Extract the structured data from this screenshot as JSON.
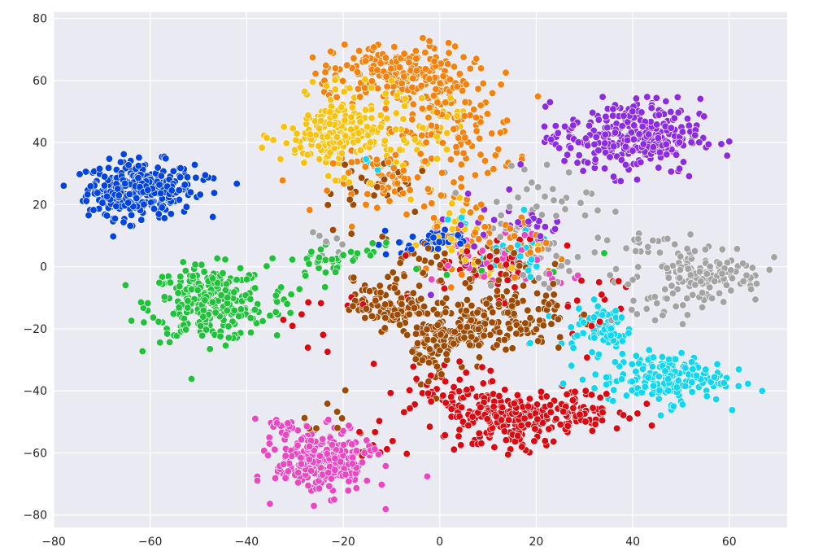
{
  "chart_data": {
    "type": "scatter",
    "title": "",
    "xlabel": "",
    "ylabel": "",
    "xlim": [
      -80,
      72
    ],
    "ylim": [
      -84,
      82
    ],
    "xticks": [
      -80,
      -60,
      -40,
      -20,
      0,
      20,
      40,
      60
    ],
    "yticks": [
      -80,
      -60,
      -40,
      -20,
      0,
      20,
      40,
      60,
      80
    ],
    "xtick_labels": [
      "−80",
      "−60",
      "−40",
      "−20",
      "0",
      "20",
      "40",
      "60"
    ],
    "ytick_labels": [
      "−80",
      "−60",
      "−40",
      "−20",
      "0",
      "20",
      "40",
      "60",
      "80"
    ],
    "grid": true,
    "legend": "none",
    "colors": {
      "background": "#eaeaf2",
      "grid": "#ffffff",
      "blue": "#0343df",
      "orange": "#f5820f",
      "green": "#22c13c",
      "red": "#db0a12",
      "purple": "#8b2be2",
      "brown": "#9c4a04",
      "pink": "#ea48c2",
      "gray": "#a3a3a3",
      "yellow": "#f9c210",
      "cyan": "#11d6f2"
    },
    "clusters": [
      {
        "color": "blue",
        "points": [
          {
            "cx": -62,
            "cy": 25,
            "sx": 5.5,
            "sy": 4.5,
            "n": 300
          },
          {
            "cx": -70,
            "cy": 22,
            "sx": 2,
            "sy": 3,
            "n": 20
          },
          {
            "cx": 0,
            "cy": 8,
            "sx": 4,
            "sy": 2,
            "n": 40
          },
          {
            "cx": -48,
            "cy": 29,
            "sx": 1,
            "sy": 1,
            "n": 4
          },
          {
            "cx": -42,
            "cy": 27,
            "sx": 0.5,
            "sy": 0.5,
            "n": 1
          },
          {
            "cx": -10,
            "cy": 5,
            "sx": 3,
            "sy": 2,
            "n": 5
          }
        ]
      },
      {
        "color": "green",
        "points": [
          {
            "cx": -48,
            "cy": -12,
            "sx": 6,
            "sy": 6,
            "n": 280
          },
          {
            "cx": -23,
            "cy": 2,
            "sx": 4,
            "sy": 3,
            "n": 35
          },
          {
            "cx": -34,
            "cy": -12,
            "sx": 2,
            "sy": 3,
            "n": 10
          },
          {
            "cx": -13,
            "cy": 6,
            "sx": 2,
            "sy": 2,
            "n": 6
          },
          {
            "cx": 15,
            "cy": 4,
            "sx": 8,
            "sy": 4,
            "n": 10
          }
        ]
      },
      {
        "color": "orange",
        "points": [
          {
            "cx": -8,
            "cy": 62,
            "sx": 7,
            "sy": 5,
            "n": 200
          },
          {
            "cx": 2,
            "cy": 44,
            "sx": 7,
            "sy": 9,
            "n": 120
          },
          {
            "cx": -10,
            "cy": 27,
            "sx": 6,
            "sy": 5,
            "n": 60
          },
          {
            "cx": 10,
            "cy": 8,
            "sx": 6,
            "sy": 5,
            "n": 50
          },
          {
            "cx": 20,
            "cy": 3,
            "sx": 4,
            "sy": 3,
            "n": 10
          },
          {
            "cx": -22,
            "cy": 58,
            "sx": 3,
            "sy": 5,
            "n": 10
          }
        ]
      },
      {
        "color": "yellow",
        "points": [
          {
            "cx": -21,
            "cy": 42,
            "sx": 6,
            "sy": 6,
            "n": 200
          },
          {
            "cx": -4,
            "cy": 45,
            "sx": 4,
            "sy": 6,
            "n": 40
          },
          {
            "cx": 3,
            "cy": 14,
            "sx": 3,
            "sy": 6,
            "n": 25
          },
          {
            "cx": -21,
            "cy": 56,
            "sx": 3,
            "sy": 3,
            "n": 15
          },
          {
            "cx": 12,
            "cy": 2,
            "sx": 4,
            "sy": 4,
            "n": 10
          }
        ]
      },
      {
        "color": "purple",
        "points": [
          {
            "cx": 40,
            "cy": 42,
            "sx": 7,
            "sy": 6,
            "n": 300
          },
          {
            "cx": 20,
            "cy": 14,
            "sx": 3,
            "sy": 2,
            "n": 20
          },
          {
            "cx": 8,
            "cy": 12,
            "sx": 6,
            "sy": 10,
            "n": 15
          },
          {
            "cx": 25,
            "cy": 40,
            "sx": 2,
            "sy": 3,
            "n": 10
          }
        ]
      },
      {
        "color": "gray",
        "points": [
          {
            "cx": 55,
            "cy": -2,
            "sx": 6,
            "sy": 5,
            "n": 130
          },
          {
            "cx": 42,
            "cy": 8,
            "sx": 4,
            "sy": 2,
            "n": 15
          },
          {
            "cx": 18,
            "cy": 18,
            "sx": 7,
            "sy": 8,
            "n": 50
          },
          {
            "cx": 30,
            "cy": -2,
            "sx": 8,
            "sy": 4,
            "n": 20
          },
          {
            "cx": 45,
            "cy": -14,
            "sx": 5,
            "sy": 3,
            "n": 15
          },
          {
            "cx": -24,
            "cy": 8,
            "sx": 3,
            "sy": 3,
            "n": 8
          }
        ]
      },
      {
        "color": "cyan",
        "points": [
          {
            "cx": 47,
            "cy": -36,
            "sx": 6,
            "sy": 4,
            "n": 170
          },
          {
            "cx": 34,
            "cy": -19,
            "sx": 3,
            "sy": 4,
            "n": 60
          },
          {
            "cx": 16,
            "cy": 4,
            "sx": 4,
            "sy": 4,
            "n": 25
          },
          {
            "cx": 28,
            "cy": -30,
            "sx": 5,
            "sy": 8,
            "n": 20
          },
          {
            "cx": -14,
            "cy": 31,
            "sx": 3,
            "sy": 2,
            "n": 6
          },
          {
            "cx": 5,
            "cy": 15,
            "sx": 2,
            "sy": 2,
            "n": 5
          }
        ]
      },
      {
        "color": "brown",
        "points": [
          {
            "cx": -10,
            "cy": -12,
            "sx": 4,
            "sy": 4,
            "n": 120
          },
          {
            "cx": 4,
            "cy": -20,
            "sx": 6,
            "sy": 4,
            "n": 140
          },
          {
            "cx": 15,
            "cy": -15,
            "sx": 6,
            "sy": 6,
            "n": 100
          },
          {
            "cx": -2,
            "cy": -30,
            "sx": 2,
            "sy": 4,
            "n": 30
          },
          {
            "cx": 5,
            "cy": 0,
            "sx": 8,
            "sy": 4,
            "n": 50
          },
          {
            "cx": -14,
            "cy": 26,
            "sx": 6,
            "sy": 6,
            "n": 30
          },
          {
            "cx": -22,
            "cy": -48,
            "sx": 3,
            "sy": 3,
            "n": 10
          }
        ]
      },
      {
        "color": "red",
        "points": [
          {
            "cx": 13,
            "cy": -50,
            "sx": 6,
            "sy": 5,
            "n": 180
          },
          {
            "cx": 28,
            "cy": -46,
            "sx": 5,
            "sy": 3,
            "n": 90
          },
          {
            "cx": 1,
            "cy": -40,
            "sx": 4,
            "sy": 4,
            "n": 40
          },
          {
            "cx": 10,
            "cy": 0,
            "sx": 7,
            "sy": 5,
            "n": 45
          },
          {
            "cx": -15,
            "cy": -58,
            "sx": 3,
            "sy": 3,
            "n": 12
          },
          {
            "cx": 32,
            "cy": -10,
            "sx": 6,
            "sy": 8,
            "n": 15
          },
          {
            "cx": -22,
            "cy": -22,
            "sx": 8,
            "sy": 8,
            "n": 12
          }
        ]
      },
      {
        "color": "pink",
        "points": [
          {
            "cx": -24,
            "cy": -63,
            "sx": 5,
            "sy": 5,
            "n": 270
          },
          {
            "cx": -34,
            "cy": -51,
            "sx": 2,
            "sy": 1.5,
            "n": 15
          },
          {
            "cx": 10,
            "cy": 3,
            "sx": 6,
            "sy": 4,
            "n": 30
          },
          {
            "cx": 25,
            "cy": -5,
            "sx": 3,
            "sy": 2,
            "n": 5
          }
        ]
      }
    ]
  }
}
